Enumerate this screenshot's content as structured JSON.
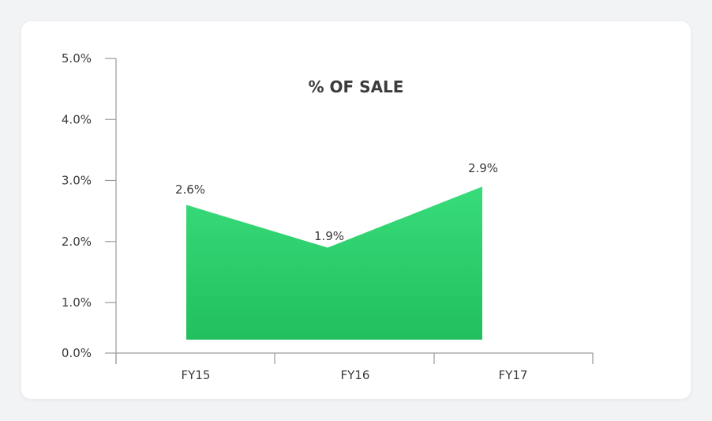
{
  "chart_data": {
    "type": "area",
    "title": "% OF SALE",
    "categories": [
      "FY15",
      "FY16",
      "FY17"
    ],
    "series": [
      {
        "values": [
          2.6,
          1.9,
          2.9
        ],
        "data_labels": [
          "2.6%",
          "1.9%",
          "2.9%"
        ]
      }
    ],
    "ylim": [
      0,
      5
    ],
    "y_ticks": [
      0,
      1,
      2,
      3,
      4,
      5
    ],
    "y_tick_labels": [
      "0.0%",
      "1.0%",
      "2.0%",
      "3.0%",
      "4.0%",
      "5.0%"
    ],
    "xlabel": "",
    "ylabel": "",
    "grid": false,
    "legend": "none",
    "colors": {
      "fill_top": "#38dc7a",
      "fill_bottom": "#22bf5e",
      "axis": "#9a9a9a",
      "text": "#3a3a3a"
    }
  }
}
